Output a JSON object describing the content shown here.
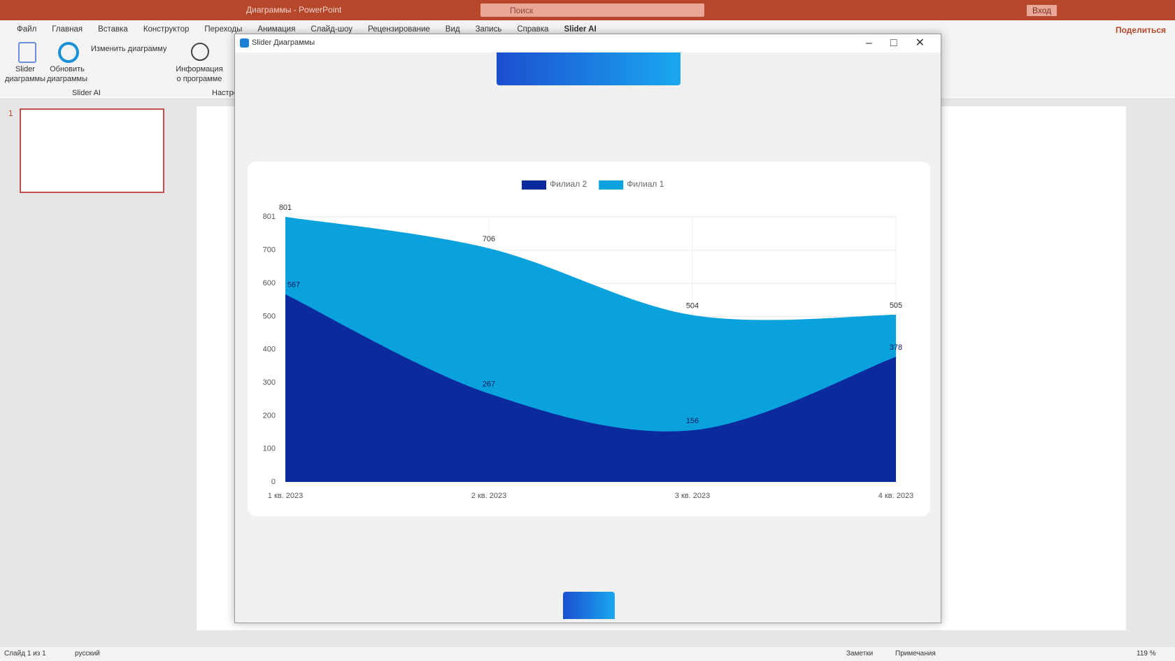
{
  "app": {
    "title": "Диаграммы - PowerPoint",
    "search": "Поиск",
    "signin": "Вход",
    "share": "Поделиться",
    "tabs": [
      "Файл",
      "Главная",
      "Вставка",
      "Конструктор",
      "Переходы",
      "Анимация",
      "Слайд-шоу",
      "Рецензирование",
      "Вид",
      "Запись",
      "Справка",
      "Slider AI"
    ],
    "ribbon": {
      "buttons": [
        "Slider\nдиаграммы",
        "Обновить\nдиаграммы",
        "Изменить диаграмму",
        "Информация\nо программе"
      ],
      "groups": [
        "Slider AI",
        "Настро"
      ]
    },
    "slide_number": "1",
    "status": {
      "slide": "Слайд 1 из 1",
      "language": "русский",
      "notes": "Заметки",
      "comments": "Примечания",
      "zoom": "119 %"
    }
  },
  "dialog": {
    "title": "Slider Диаграммы"
  },
  "chart_data": {
    "type": "area",
    "categories": [
      "1 кв. 2023",
      "2 кв. 2023",
      "3 кв. 2023",
      "4 кв. 2023"
    ],
    "series": [
      {
        "name": "Филиал 2",
        "color": "#0a2a9e",
        "values": [
          567,
          267,
          156,
          378
        ]
      },
      {
        "name": "Филиал 1",
        "color": "#0aa2dc",
        "values": [
          801,
          706,
          504,
          505
        ]
      }
    ],
    "ylim": [
      0,
      801
    ],
    "yticks": [
      0,
      100,
      200,
      300,
      400,
      500,
      600,
      700,
      801
    ],
    "grid": true,
    "legend": "top"
  }
}
